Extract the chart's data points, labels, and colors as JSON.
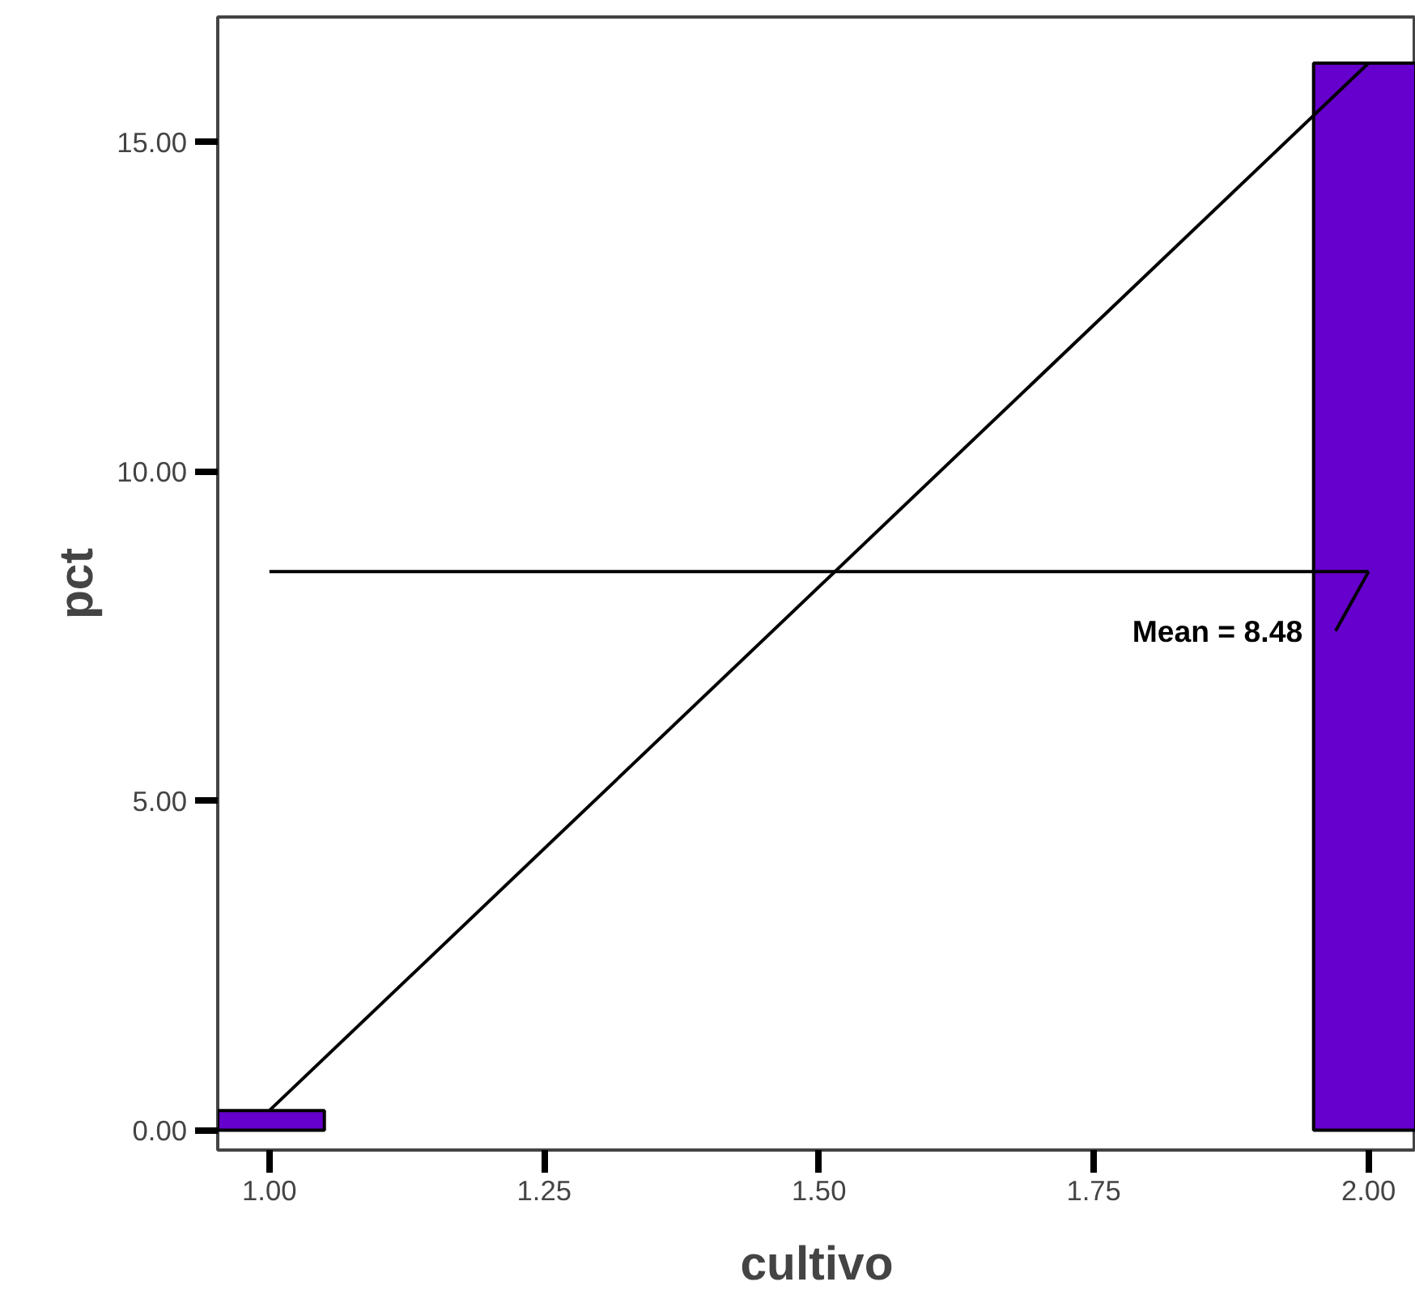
{
  "chart_data": {
    "type": "bar",
    "xlabel": "cultivo",
    "ylabel": "pct",
    "x": [
      1.0,
      2.0
    ],
    "series": [
      {
        "color": "#6600cc",
        "values": [
          0.3,
          16.2
        ]
      },
      {
        "type": "line",
        "color": "#000000",
        "values": [
          0.3,
          16.2
        ]
      }
    ],
    "xlim": [
      0.953,
      2.043
    ],
    "ylim": [
      -0.3,
      16.9
    ],
    "xticks": [
      {
        "value": 1,
        "label": "1.00"
      },
      {
        "value": 1.25,
        "label": "1.25"
      },
      {
        "value": 1.5,
        "label": "1.50"
      },
      {
        "value": 1.75,
        "label": "1.75"
      },
      {
        "value": 2,
        "label": "2.00"
      }
    ],
    "yticks": [
      {
        "value": 0,
        "label": "0.00"
      },
      {
        "value": 5,
        "label": "5.00"
      },
      {
        "value": 10,
        "label": "10.00"
      },
      {
        "value": 15,
        "label": "15.00"
      }
    ],
    "ref_lines": [
      {
        "axis": "y",
        "value": 8.48,
        "label": "Mean = 8.48",
        "color": "#000000"
      }
    ],
    "grid": false,
    "marker": "none",
    "line_style": "solid"
  }
}
